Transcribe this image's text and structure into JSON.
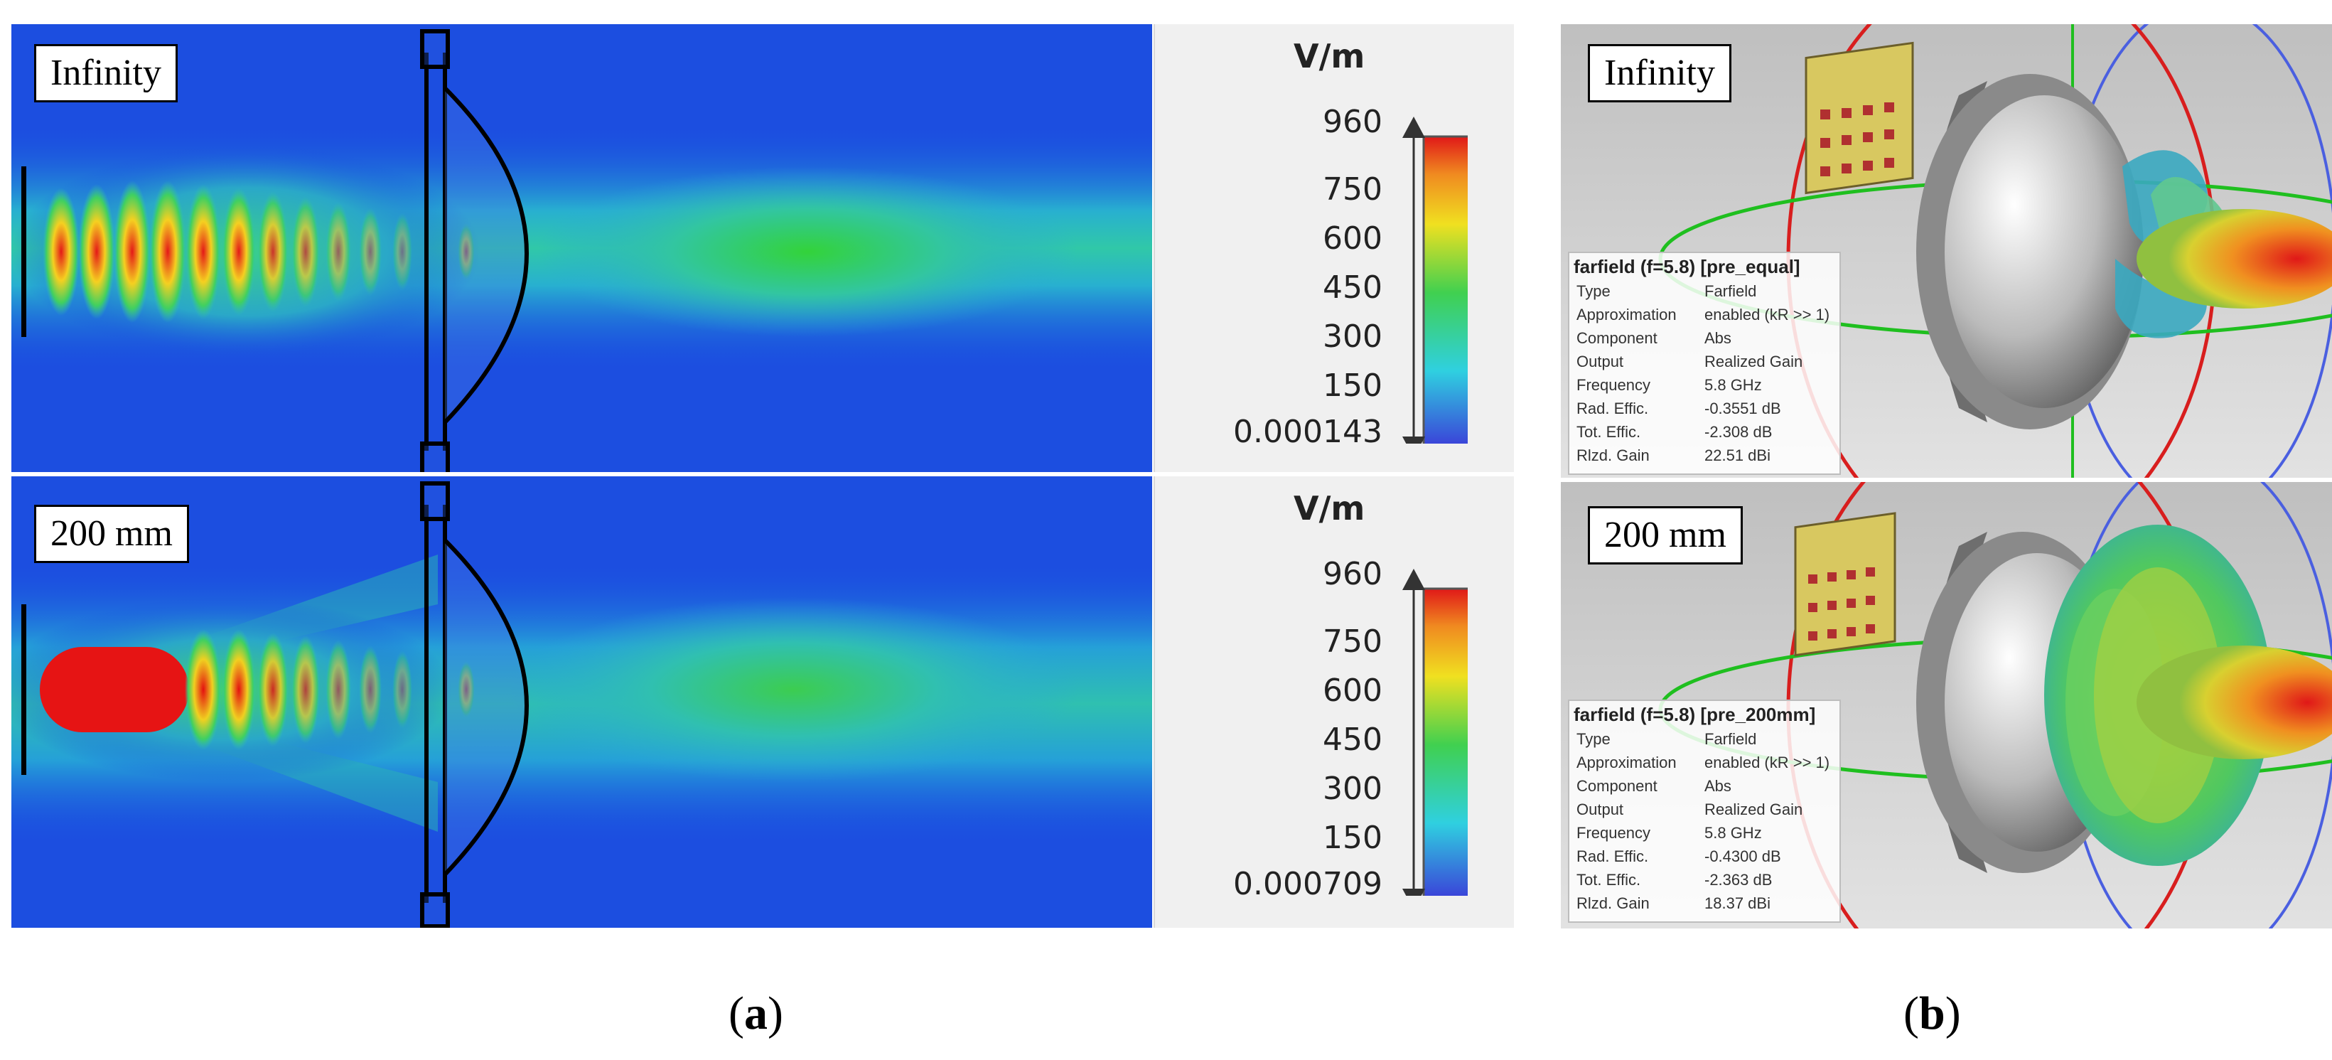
{
  "panel_a": {
    "sub_label": "a",
    "rows": [
      {
        "label": "Infinity",
        "unit": "V/m",
        "ticks": [
          "960",
          "750",
          "600",
          "450",
          "300",
          "150",
          "0.000143"
        ]
      },
      {
        "label": "200 mm",
        "unit": "V/m",
        "ticks": [
          "960",
          "750",
          "600",
          "450",
          "300",
          "150",
          "0.000709"
        ]
      }
    ]
  },
  "panel_b": {
    "sub_label": "b",
    "rows": [
      {
        "label": "Infinity",
        "info": {
          "title": "farfield (f=5.8) [pre_equal]",
          "rows": [
            {
              "key": "Type",
              "value": "Farfield"
            },
            {
              "key": "Approximation",
              "value": "enabled (kR >> 1)"
            },
            {
              "key": "Component",
              "value": "Abs"
            },
            {
              "key": "Output",
              "value": "Realized Gain"
            },
            {
              "key": "Frequency",
              "value": "5.8 GHz"
            },
            {
              "key": "Rad. Effic.",
              "value": "-0.3551 dB"
            },
            {
              "key": "Tot. Effic.",
              "value": "-2.308 dB"
            },
            {
              "key": "Rlzd. Gain",
              "value": "22.51 dBi"
            }
          ]
        }
      },
      {
        "label": "200 mm",
        "info": {
          "title": "farfield (f=5.8) [pre_200mm]",
          "rows": [
            {
              "key": "Type",
              "value": "Farfield"
            },
            {
              "key": "Approximation",
              "value": "enabled (kR >> 1)"
            },
            {
              "key": "Component",
              "value": "Abs"
            },
            {
              "key": "Output",
              "value": "Realized Gain"
            },
            {
              "key": "Frequency",
              "value": "5.8 GHz"
            },
            {
              "key": "Rad. Effic.",
              "value": "-0.4300 dB"
            },
            {
              "key": "Tot. Effic.",
              "value": "-2.363 dB"
            },
            {
              "key": "Rlzd. Gain",
              "value": "18.37 dBi"
            }
          ]
        }
      }
    ]
  },
  "colors": {
    "field_low": "#1a3fd8",
    "field_mid": "#2fd07a",
    "field_high": "#e01818",
    "far_x_axis": "#d81e1e",
    "far_y_axis": "#1fbf1f",
    "far_z_axis": "#4a5fe0"
  }
}
